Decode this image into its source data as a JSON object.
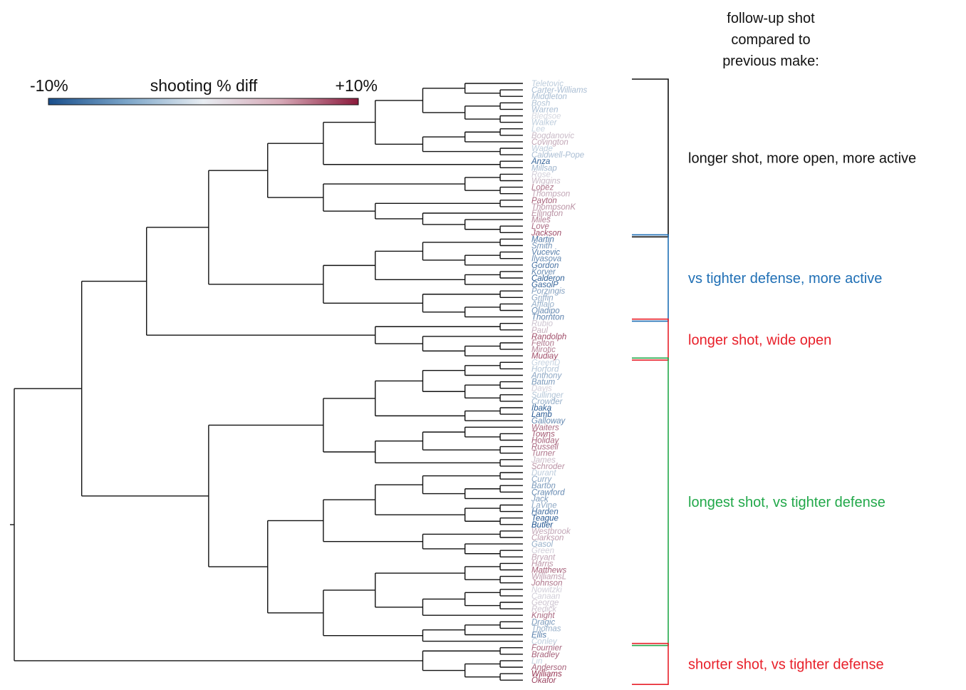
{
  "header": {
    "lines": [
      "follow-up shot",
      "compared to",
      "previous make:"
    ]
  },
  "legend": {
    "min_label": "-10%",
    "title": "shooting % diff",
    "max_label": "+10%",
    "colors": [
      "#1a4f8c",
      "#7aa4c8",
      "#e8edf2",
      "#d6a8b6",
      "#8b1a3c"
    ]
  },
  "leaves": [
    {
      "name": "Teletovic",
      "diff": -1.5
    },
    {
      "name": "Carter-Williams",
      "diff": -2.5
    },
    {
      "name": "Middleton",
      "diff": -2.5
    },
    {
      "name": "Bosh",
      "diff": -2.0
    },
    {
      "name": "Warren",
      "diff": -2.5
    },
    {
      "name": "Bledsoe",
      "diff": 0.5
    },
    {
      "name": "Walker",
      "diff": -1.5
    },
    {
      "name": "Lee",
      "diff": -1.0
    },
    {
      "name": "Bogdanovic",
      "diff": 2.0
    },
    {
      "name": "Covington",
      "diff": 3.0
    },
    {
      "name": "Wade",
      "diff": -1.5
    },
    {
      "name": "Caldwell-Pope",
      "diff": -2.5
    },
    {
      "name": "Anza",
      "diff": -8.5
    },
    {
      "name": "Millsap",
      "diff": -3.0
    },
    {
      "name": "Rose",
      "diff": 1.0
    },
    {
      "name": "Wiggins",
      "diff": 2.0
    },
    {
      "name": "Lopez",
      "diff": 5.5
    },
    {
      "name": "Thompson",
      "diff": 3.0
    },
    {
      "name": "Payton",
      "diff": 6.5
    },
    {
      "name": "ThompsonK",
      "diff": 4.0
    },
    {
      "name": "Ellington",
      "diff": 4.0
    },
    {
      "name": "Miles",
      "diff": 5.0
    },
    {
      "name": "Love",
      "diff": 6.0
    },
    {
      "name": "Jackson",
      "diff": 7.5
    },
    {
      "name": "Martin",
      "diff": -7.5
    },
    {
      "name": "Smith",
      "diff": -5.5
    },
    {
      "name": "Vucevic",
      "diff": -7.0
    },
    {
      "name": "Ilyasova",
      "diff": -6.0
    },
    {
      "name": "Gordon",
      "diff": -7.5
    },
    {
      "name": "Korver",
      "diff": -6.0
    },
    {
      "name": "Calderon",
      "diff": -9.0
    },
    {
      "name": "GasolP",
      "diff": -8.5
    },
    {
      "name": "Porzingis",
      "diff": -4.5
    },
    {
      "name": "Griffin",
      "diff": -4.0
    },
    {
      "name": "Afflalo",
      "diff": -3.5
    },
    {
      "name": "Oladipo",
      "diff": -6.0
    },
    {
      "name": "Thornton",
      "diff": -6.5
    },
    {
      "name": "Rubio",
      "diff": 1.5
    },
    {
      "name": "Paul",
      "diff": 2.5
    },
    {
      "name": "Randolph",
      "diff": 7.5
    },
    {
      "name": "Felton",
      "diff": 5.5
    },
    {
      "name": "Mirotic",
      "diff": 5.0
    },
    {
      "name": "Mudiay",
      "diff": 7.5
    },
    {
      "name": "GreenD",
      "diff": -1.0
    },
    {
      "name": "Horford",
      "diff": -2.0
    },
    {
      "name": "Anthony",
      "diff": -4.0
    },
    {
      "name": "Batum",
      "diff": -5.0
    },
    {
      "name": "Davis",
      "diff": 1.0
    },
    {
      "name": "Sullinger",
      "diff": -2.0
    },
    {
      "name": "Crowder",
      "diff": -3.5
    },
    {
      "name": "Ibaka",
      "diff": -9.0
    },
    {
      "name": "Lamb",
      "diff": -9.5
    },
    {
      "name": "Galloway",
      "diff": -6.0
    },
    {
      "name": "Waiters",
      "diff": 6.0
    },
    {
      "name": "Towns",
      "diff": 7.0
    },
    {
      "name": "Holiday",
      "diff": 6.5
    },
    {
      "name": "Russell",
      "diff": 6.0
    },
    {
      "name": "Turner",
      "diff": 5.5
    },
    {
      "name": "James",
      "diff": 2.0
    },
    {
      "name": "Schroder",
      "diff": 4.0
    },
    {
      "name": "Durant",
      "diff": -1.5
    },
    {
      "name": "Curry",
      "diff": -4.0
    },
    {
      "name": "Barton",
      "diff": -5.0
    },
    {
      "name": "Crawford",
      "diff": -6.0
    },
    {
      "name": "Jack",
      "diff": -5.0
    },
    {
      "name": "LaVine",
      "diff": -4.0
    },
    {
      "name": "Harden",
      "diff": -8.0
    },
    {
      "name": "Teague",
      "diff": -9.5
    },
    {
      "name": "Butler",
      "diff": -10.0
    },
    {
      "name": "Westbrook",
      "diff": 3.0
    },
    {
      "name": "Clarkson",
      "diff": 3.5
    },
    {
      "name": "Gasol",
      "diff": -3.5
    },
    {
      "name": "Green",
      "diff": 1.0
    },
    {
      "name": "Bryant",
      "diff": 3.0
    },
    {
      "name": "Harris",
      "diff": 4.0
    },
    {
      "name": "Matthews",
      "diff": 6.5
    },
    {
      "name": "WilliamsL",
      "diff": 3.5
    },
    {
      "name": "Johnson",
      "diff": 5.5
    },
    {
      "name": "Nowitzki",
      "diff": 1.0
    },
    {
      "name": "Canaan",
      "diff": 1.0
    },
    {
      "name": "George",
      "diff": 1.5
    },
    {
      "name": "Redick",
      "diff": 1.5
    },
    {
      "name": "Knight",
      "diff": 6.0
    },
    {
      "name": "Dragic",
      "diff": -5.0
    },
    {
      "name": "Thomas",
      "diff": -3.5
    },
    {
      "name": "Ellis",
      "diff": -7.0
    },
    {
      "name": "Conley",
      "diff": -1.5
    },
    {
      "name": "Fournier",
      "diff": 6.0
    },
    {
      "name": "Bradley",
      "diff": 6.5
    },
    {
      "name": "Lin",
      "diff": -1.0
    },
    {
      "name": "Anderson",
      "diff": 6.5
    },
    {
      "name": "Williams",
      "diff": 9.0
    },
    {
      "name": "Okafor",
      "diff": 8.0
    }
  ],
  "clusters": [
    {
      "label": "longer shot, more open, more active",
      "color": "#111111",
      "from": 0,
      "to": 23
    },
    {
      "label": "vs tighter defense, more active",
      "color": "#1f6fb5",
      "from": 24,
      "to": 36
    },
    {
      "label": "longer shot, wide open",
      "color": "#e8202a",
      "from": 37,
      "to": 42
    },
    {
      "label": "longest shot, vs tighter defense",
      "color": "#22a84a",
      "from": 43,
      "to": 86
    },
    {
      "label": "shorter shot, vs tighter defense",
      "color": "#e8202a",
      "from": 87,
      "to": 92
    }
  ],
  "tree": [
    [
      [
        [
          [
            [
              [
                [
                  [
                    "Teletovic",
                    [
                      "Carter-Williams",
                      "Middleton"
                    ]
                  ],
                  [
                    [
                      "Bosh",
                      "Warren"
                    ],
                    [
                      "Bledsoe",
                      "Walker"
                    ]
                  ]
                ],
                [
                  [
                    [
                      "Lee",
                      "Bogdanovic"
                    ],
                    "Covington"
                  ],
                  [
                    "Wade",
                    "Caldwell-Pope"
                  ]
                ]
              ],
              [
                "Anza",
                "Millsap"
              ]
            ],
            [
              [
                [
                  "Rose",
                  "Wiggins"
                ],
                [
                  "Lopez",
                  "Thompson"
                ]
              ],
              [
                [
                  "Payton",
                  "ThompsonK"
                ],
                [
                  "Ellington",
                  [
                    "Miles",
                    [
                      "Love",
                      "Jackson"
                    ]
                  ]
                ]
              ]
            ]
          ],
          [
            [
              [
                [
                  "Martin",
                  "Smith"
                ],
                [
                  [
                    "Vucevic",
                    "Ilyasova"
                  ],
                  "Gordon"
                ]
              ],
              [
                [
                  "Korver",
                  "Calderon"
                ],
                "GasolP"
              ]
            ],
            [
              [
                "Porzingis",
                "Griffin"
              ],
              [
                [
                  "Afflalo",
                  "Oladipo"
                ],
                "Thornton"
              ]
            ]
          ]
        ],
        [
          [
            "Rubio",
            "Paul"
          ],
          [
            "Randolph",
            [
              [
                "Felton",
                "Mirotic"
              ],
              "Mudiay"
            ]
          ]
        ]
      ],
      [
        [
          [
            [
              [
                [
                  "GreenD",
                  "Horford"
                ],
                "Anthony"
              ],
              [
                [
                  "Batum",
                  "Davis"
                ],
                [
                  "Sullinger",
                  "Crowder"
                ]
              ]
            ],
            [
              [
                "Ibaka",
                "Lamb"
              ],
              "Galloway"
            ]
          ],
          [
            [
              [
                "Waiters",
                [
                  "Towns",
                  "Holiday"
                ]
              ],
              [
                "Russell",
                "Turner"
              ]
            ],
            [
              "James",
              "Schroder"
            ]
          ]
        ],
        [
          [
            [
              [
                [
                  "Durant",
                  "Curry"
                ],
                [
                  [
                    "Barton",
                    "Crawford"
                  ],
                  "Jack"
                ]
              ],
              [
                [
                  "LaVine",
                  "Harden"
                ],
                [
                  "Teague",
                  "Butler"
                ]
              ]
            ],
            [
              [
                "Westbrook",
                "Clarkson"
              ],
              [
                "Gasol",
                [
                  "Green",
                  "Bryant"
                ]
              ]
            ]
          ],
          [
            [
              [
                [
                  "Harris",
                  "Matthews"
                ],
                [
                  "WilliamsL",
                  "Johnson"
                ]
              ],
              [
                [
                  [
                    "Nowitzki",
                    "Canaan"
                  ],
                  [
                    "George",
                    "Redick"
                  ]
                ],
                "Knight"
              ]
            ],
            [
              [
                [
                  "Dragic",
                  "Thomas"
                ],
                "Ellis"
              ],
              "Conley"
            ]
          ]
        ]
      ]
    ],
    [
      [
        "Fournier",
        "Bradley"
      ],
      [
        [
          "Lin",
          "Anderson"
        ],
        [
          "Williams",
          "Okafor"
        ]
      ]
    ]
  ]
}
